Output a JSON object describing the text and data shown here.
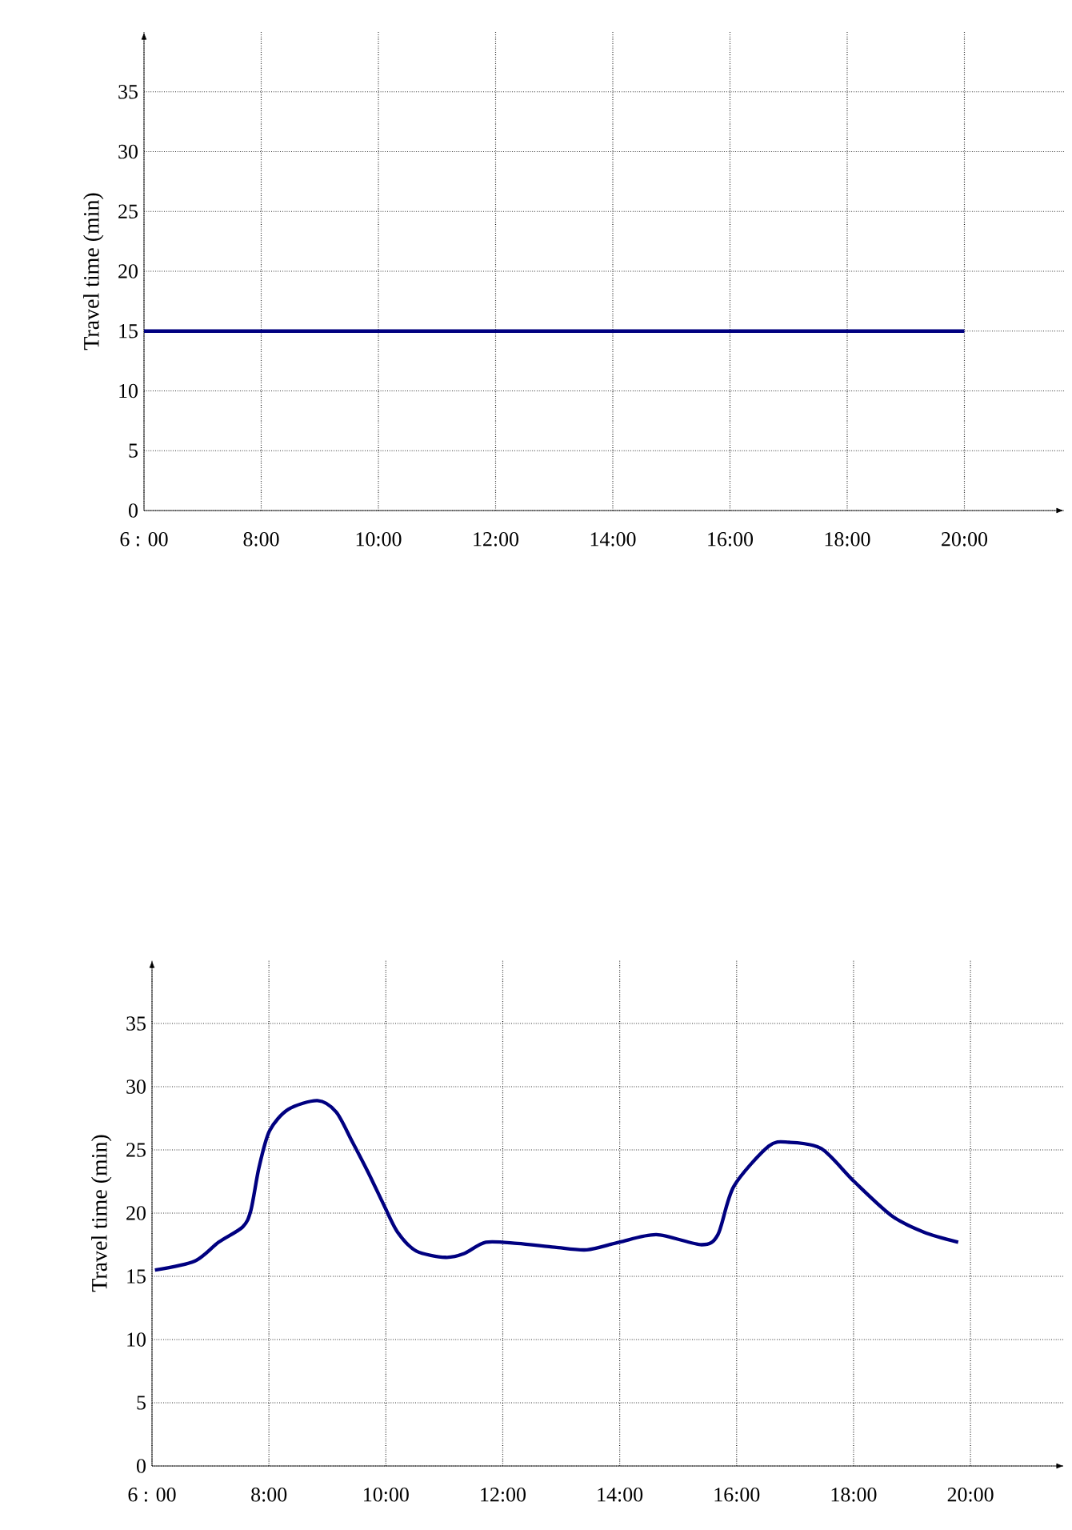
{
  "chart_data": [
    {
      "type": "line",
      "ylabel": "Travel time (min)",
      "x": [
        6,
        20
      ],
      "series": [
        {
          "color": "#000080",
          "values": [
            15,
            15
          ]
        }
      ],
      "xlim": [
        6,
        21.7
      ],
      "ylim": [
        0,
        40
      ],
      "xticks": [
        {
          "value": 6,
          "label": "6 : 00"
        },
        {
          "value": 8,
          "label": "8:00"
        },
        {
          "value": 10,
          "label": "10:00"
        },
        {
          "value": 12,
          "label": "12:00"
        },
        {
          "value": 14,
          "label": "14:00"
        },
        {
          "value": 16,
          "label": "16:00"
        },
        {
          "value": 18,
          "label": "18:00"
        },
        {
          "value": 20,
          "label": "20:00"
        }
      ],
      "yticks": [
        0,
        5,
        10,
        15,
        20,
        25,
        30,
        35
      ],
      "grid": true,
      "marker": "none",
      "line_style": "solid"
    },
    {
      "type": "line",
      "ylabel": "Travel time (min)",
      "x": [
        6.05,
        6.73,
        7.14,
        7.55,
        7.69,
        7.83,
        8.01,
        8.33,
        8.83,
        9.15,
        9.42,
        9.7,
        9.97,
        10.2,
        10.52,
        11.02,
        11.34,
        11.71,
        12.25,
        12.89,
        13.44,
        13.99,
        14.63,
        15.4,
        15.68,
        15.95,
        16.55,
        16.9,
        17.45,
        18.01,
        18.65,
        19.2,
        19.79
      ],
      "series": [
        {
          "color": "#000080",
          "values": [
            15.5,
            16.2,
            17.7,
            18.9,
            20.2,
            23.6,
            26.5,
            28.2,
            28.9,
            28.0,
            25.7,
            23.2,
            20.6,
            18.5,
            17.0,
            16.5,
            16.8,
            17.7,
            17.6,
            17.3,
            17.1,
            17.7,
            18.3,
            17.5,
            18.3,
            22.1,
            25.3,
            25.6,
            25.1,
            22.5,
            19.8,
            18.5,
            17.7
          ]
        }
      ],
      "xlim": [
        6,
        21.6
      ],
      "ylim": [
        0,
        40
      ],
      "xticks": [
        {
          "value": 6,
          "label": "6 : 00"
        },
        {
          "value": 8,
          "label": "8:00"
        },
        {
          "value": 10,
          "label": "10:00"
        },
        {
          "value": 12,
          "label": "12:00"
        },
        {
          "value": 14,
          "label": "14:00"
        },
        {
          "value": 16,
          "label": "16:00"
        },
        {
          "value": 18,
          "label": "18:00"
        },
        {
          "value": 20,
          "label": "20:00"
        }
      ],
      "yticks": [
        0,
        5,
        10,
        15,
        20,
        25,
        30,
        35
      ],
      "grid": true,
      "marker": "none",
      "line_style": "solid"
    }
  ]
}
